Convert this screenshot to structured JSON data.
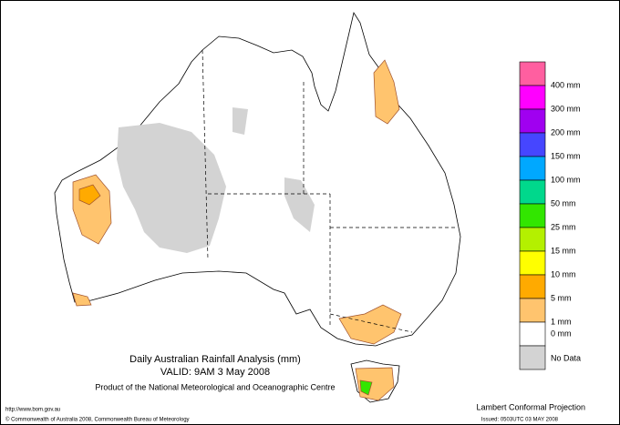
{
  "header": {
    "title": "Daily Australian Rainfall Analysis (mm)",
    "valid": "VALID: 9AM  3 May 2008",
    "product": "Product of the National Meteorological and Oceanographic Centre"
  },
  "footer": {
    "url": "http://www.bom.gov.au",
    "copyright": "© Commonwealth of Australia 2008, Commonwealth Bureau of Meteorology",
    "projection": "Lambert Conformal Projection",
    "issued": "Issued: 0503UTC 03 MAY 2008"
  },
  "legend": {
    "items": [
      {
        "label": "400 mm",
        "color": "#ff5fa0"
      },
      {
        "label": "300 mm",
        "color": "#ff00ff"
      },
      {
        "label": "200 mm",
        "color": "#a000f0"
      },
      {
        "label": "150 mm",
        "color": "#4646ff"
      },
      {
        "label": "100 mm",
        "color": "#00a8ff"
      },
      {
        "label": "50 mm",
        "color": "#00d88c"
      },
      {
        "label": "25 mm",
        "color": "#32e600"
      },
      {
        "label": "15 mm",
        "color": "#b4f000"
      },
      {
        "label": "10 mm",
        "color": "#ffff00"
      },
      {
        "label": "5 mm",
        "color": "#ffaa00"
      },
      {
        "label": "1 mm",
        "color": "#ffc46e"
      },
      {
        "label": "0 mm",
        "color": "#ffffff"
      },
      {
        "label": "No Data",
        "color": "#d3d3d3"
      }
    ]
  }
}
